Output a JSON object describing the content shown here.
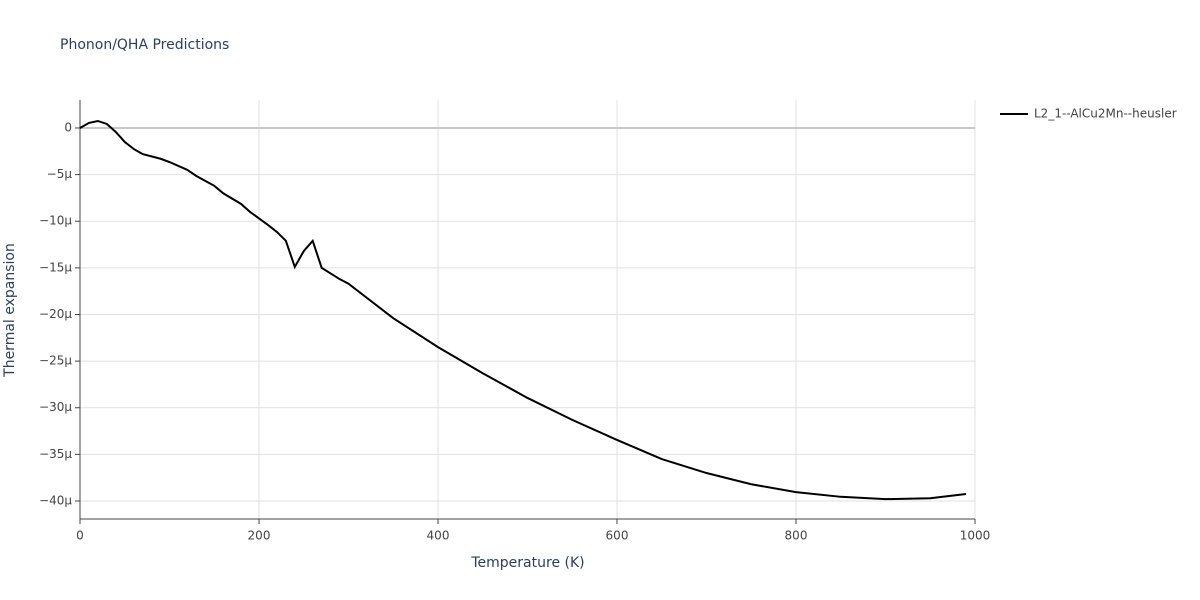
{
  "chart_data": {
    "type": "line",
    "title": "Phonon/QHA Predictions",
    "x_label": "Temperature (K)",
    "y_label": "Thermal expansion",
    "x": [
      0,
      10,
      20,
      30,
      40,
      50,
      60,
      70,
      90,
      100,
      120,
      130,
      150,
      160,
      180,
      190,
      210,
      220,
      230,
      240,
      250,
      260,
      270,
      290,
      300,
      350,
      400,
      450,
      500,
      550,
      600,
      650,
      700,
      750,
      800,
      850,
      900,
      950,
      990
    ],
    "series": [
      {
        "name": "L2_1--AlCu2Mn--heusler",
        "color": "#000000",
        "values": [
          0,
          5.4e-07,
          7.5e-07,
          4.3e-07,
          -4.3e-07,
          -1.5e-06,
          -2.25e-06,
          -2.8e-06,
          -3.3e-06,
          -3.65e-06,
          -4.5e-06,
          -5.15e-06,
          -6.2e-06,
          -7e-06,
          -8.15e-06,
          -9e-06,
          -1.04e-05,
          -1.115e-05,
          -1.21e-05,
          -1.49e-05,
          -1.32e-05,
          -1.21e-05,
          -1.5e-05,
          -1.62e-05,
          -1.67e-05,
          -2.04e-05,
          -2.35e-05,
          -2.63e-05,
          -2.895e-05,
          -3.13e-05,
          -3.345e-05,
          -3.55e-05,
          -3.7e-05,
          -3.82e-05,
          -3.905e-05,
          -3.955e-05,
          -3.98e-05,
          -3.97e-05,
          -3.925e-05
        ]
      }
    ],
    "xlim": [
      0,
      1000
    ],
    "xticks": [
      0,
      200,
      400,
      600,
      800,
      1000
    ],
    "ylim": [
      -4.193e-05,
      3e-06
    ],
    "yticks": [
      0,
      {
        "value": -5e-06,
        "label": "−5µ"
      },
      {
        "value": -1e-05,
        "label": "−10µ"
      },
      {
        "value": -1.5e-05,
        "label": "−15µ"
      },
      {
        "value": -2e-05,
        "label": "−20µ"
      },
      {
        "value": -2.5e-05,
        "label": "−25µ"
      },
      {
        "value": -3e-05,
        "label": "−30µ"
      },
      {
        "value": -3.5e-05,
        "label": "−35µ"
      },
      {
        "value": -4e-05,
        "label": "−40µ"
      }
    ],
    "grid": true,
    "legend": "right"
  }
}
